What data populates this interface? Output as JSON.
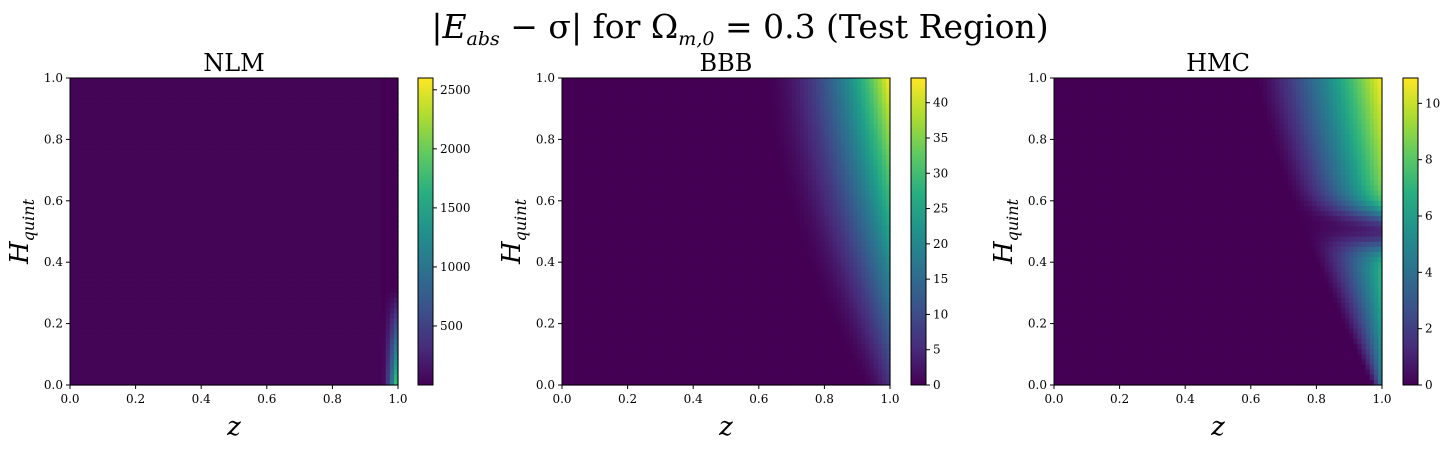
{
  "figure": {
    "suptitle": "|E_abs − σ| for Ω_m,0 = 0.3 (Test Region)",
    "suptitle_parts": {
      "lhs_open": "|",
      "E": "E",
      "E_sub": "abs",
      "minus_sigma": " − σ|",
      "for": " for ",
      "Omega": "Ω",
      "Omega_sub": "m,0",
      "eq": " = 0.3 (Test Region)"
    }
  },
  "chart_data": [
    {
      "type": "heatmap",
      "title": "NLM",
      "xlabel": "z",
      "ylabel": "H",
      "ylabel_sub": "quint",
      "x_ticks": [
        "0.0",
        "0.2",
        "0.4",
        "0.6",
        "0.8",
        "1.0"
      ],
      "y_ticks": [
        "0.0",
        "0.2",
        "0.4",
        "0.6",
        "0.8",
        "1.0"
      ],
      "xlim": [
        0,
        1
      ],
      "ylim": [
        0,
        1
      ],
      "colormap": "viridis",
      "colorbar_range": [
        0,
        2600
      ],
      "colorbar_ticks": [
        "500",
        "1000",
        "1500",
        "2000",
        "2500"
      ],
      "colorbar_tick_values": [
        500,
        1000,
        1500,
        2000,
        2500
      ],
      "pattern": "nlm"
    },
    {
      "type": "heatmap",
      "title": "BBB",
      "xlabel": "z",
      "ylabel": "H",
      "ylabel_sub": "quint",
      "x_ticks": [
        "0.0",
        "0.2",
        "0.4",
        "0.6",
        "0.8",
        "1.0"
      ],
      "y_ticks": [
        "0.0",
        "0.2",
        "0.4",
        "0.6",
        "0.8",
        "1.0"
      ],
      "xlim": [
        0,
        1
      ],
      "ylim": [
        0,
        1
      ],
      "colormap": "viridis",
      "colorbar_range": [
        0,
        43.5
      ],
      "colorbar_ticks": [
        "0",
        "5",
        "10",
        "15",
        "20",
        "25",
        "30",
        "35",
        "40"
      ],
      "colorbar_tick_values": [
        0,
        5,
        10,
        15,
        20,
        25,
        30,
        35,
        40
      ],
      "pattern": "bbb"
    },
    {
      "type": "heatmap",
      "title": "HMC",
      "xlabel": "z",
      "ylabel": "H",
      "ylabel_sub": "quint",
      "x_ticks": [
        "0.0",
        "0.2",
        "0.4",
        "0.6",
        "0.8",
        "1.0"
      ],
      "y_ticks": [
        "0.0",
        "0.2",
        "0.4",
        "0.6",
        "0.8",
        "1.0"
      ],
      "xlim": [
        0,
        1
      ],
      "ylim": [
        0,
        1
      ],
      "colormap": "viridis",
      "colorbar_range": [
        0,
        10.9
      ],
      "colorbar_ticks": [
        "0",
        "2",
        "4",
        "6",
        "8",
        "10"
      ],
      "colorbar_tick_values": [
        0,
        2,
        4,
        6,
        8,
        10
      ],
      "pattern": "hmc"
    }
  ]
}
